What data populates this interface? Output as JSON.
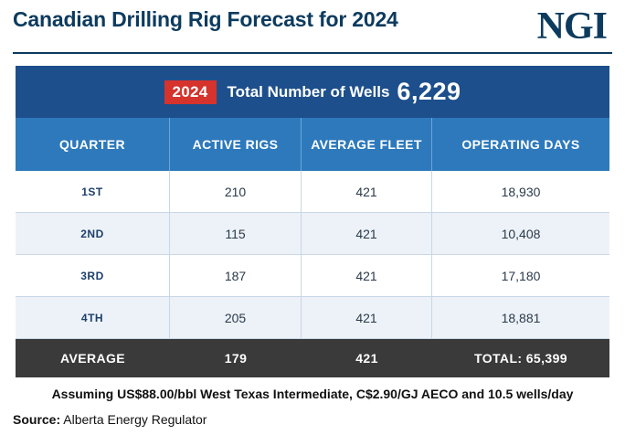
{
  "title": "Canadian Drilling Rig Forecast for 2024",
  "logo": "NGI",
  "chart_data": {
    "type": "table",
    "banner": {
      "year": "2024",
      "label": "Total Number of Wells",
      "value": "6,229"
    },
    "columns": [
      "QUARTER",
      "ACTIVE RIGS",
      "AVERAGE FLEET",
      "OPERATING DAYS"
    ],
    "rows": [
      {
        "quarter": "1ST",
        "active_rigs": "210",
        "average_fleet": "421",
        "operating_days": "18,930"
      },
      {
        "quarter": "2ND",
        "active_rigs": "115",
        "average_fleet": "421",
        "operating_days": "10,408"
      },
      {
        "quarter": "3RD",
        "active_rigs": "187",
        "average_fleet": "421",
        "operating_days": "17,180"
      },
      {
        "quarter": "4TH",
        "active_rigs": "205",
        "average_fleet": "421",
        "operating_days": "18,881"
      }
    ],
    "summary": {
      "label": "AVERAGE",
      "active_rigs": "179",
      "average_fleet": "421",
      "operating_days": "TOTAL: 65,399"
    }
  },
  "assumption": "Assuming US$88.00/bbl West Texas Intermediate, C$2.90/GJ AECO and 10.5 wells/day",
  "source": {
    "label": "Source:",
    "text": "Alberta Energy Regulator"
  },
  "colors": {
    "title": "#0d3b5e",
    "banner": "#1d4f8c",
    "badge": "#d5332c",
    "header": "#2d79bc",
    "average_row": "#3a3a3a"
  }
}
